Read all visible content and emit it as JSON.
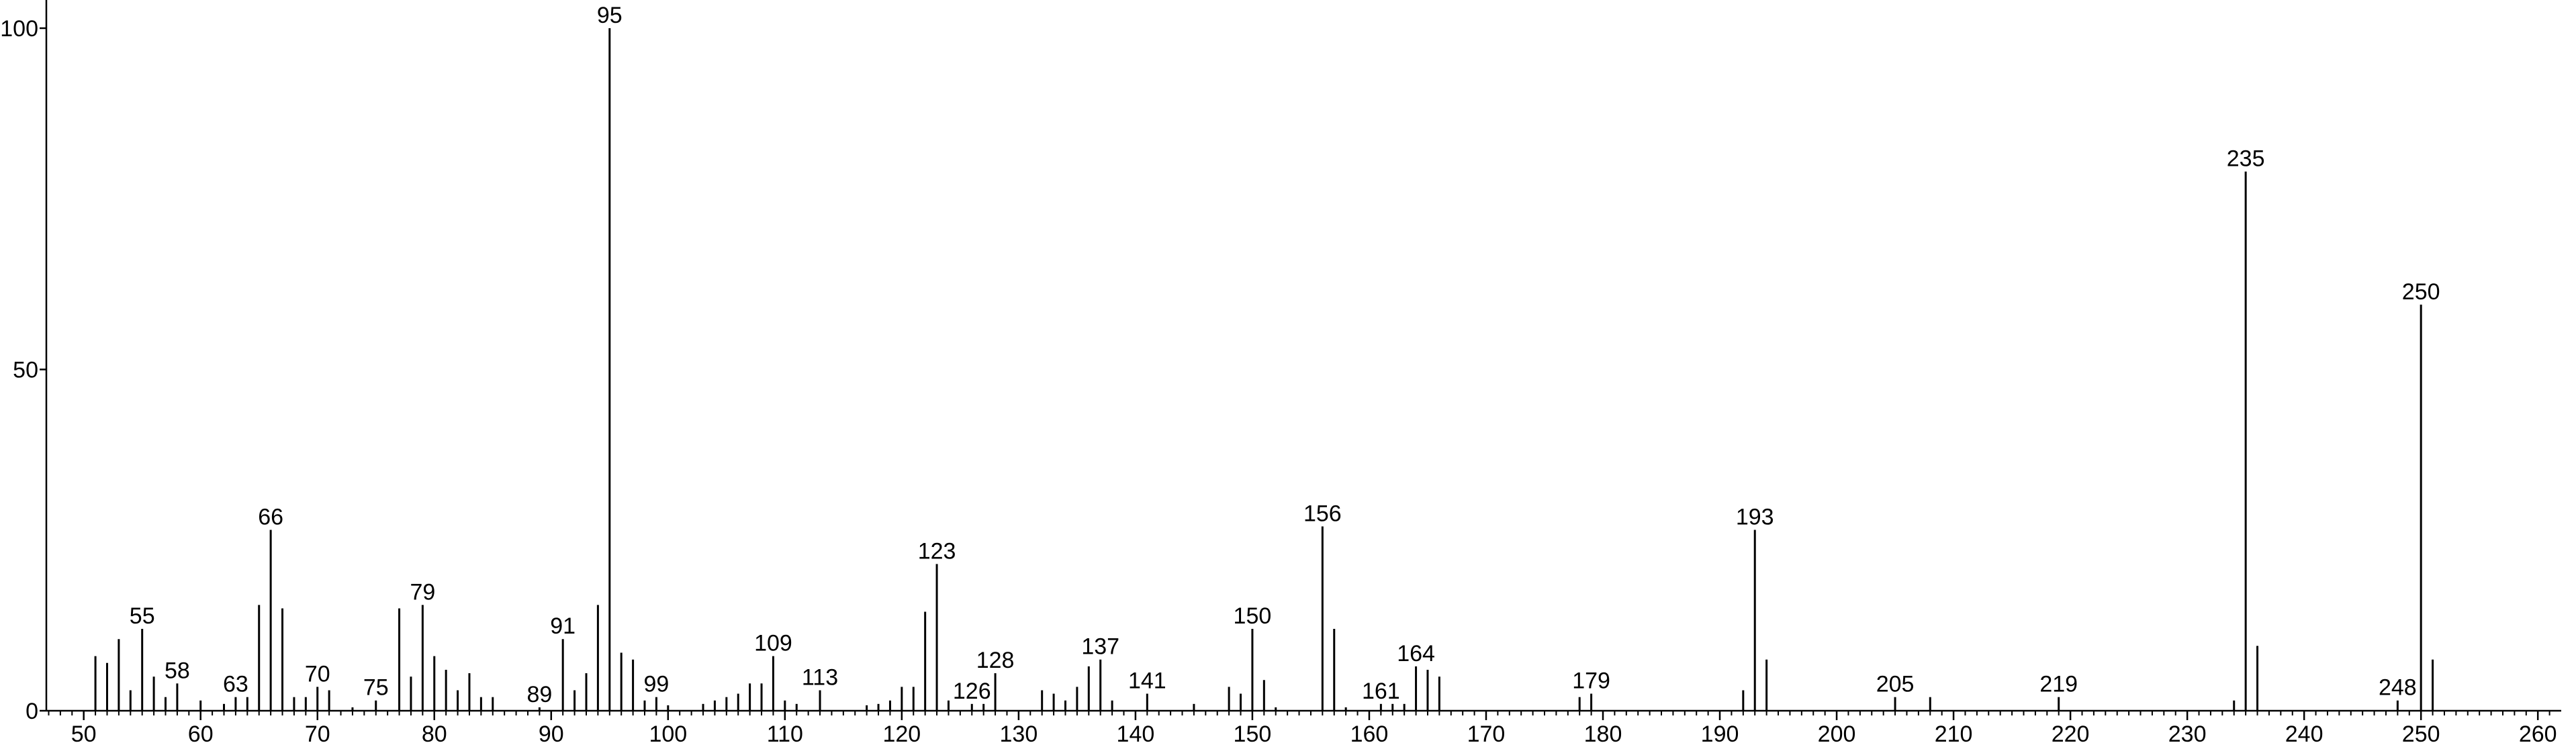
{
  "chart_data": {
    "type": "stem",
    "x": [
      51,
      52,
      53,
      54,
      55,
      56,
      57,
      58,
      60,
      62,
      63,
      64,
      65,
      66,
      67,
      68,
      69,
      70,
      71,
      73,
      75,
      77,
      78,
      79,
      80,
      81,
      82,
      83,
      84,
      85,
      89,
      91,
      92,
      93,
      94,
      95,
      96,
      97,
      98,
      99,
      100,
      103,
      104,
      105,
      106,
      107,
      108,
      109,
      110,
      111,
      113,
      117,
      118,
      119,
      120,
      121,
      122,
      123,
      124,
      126,
      127,
      128,
      132,
      133,
      134,
      135,
      136,
      137,
      138,
      141,
      145,
      148,
      149,
      150,
      151,
      152,
      156,
      157,
      158,
      161,
      162,
      163,
      164,
      165,
      166,
      178,
      179,
      192,
      193,
      194,
      205,
      208,
      219,
      234,
      235,
      236,
      248,
      250,
      251
    ],
    "values": [
      8,
      7,
      10.5,
      3,
      12,
      5,
      2,
      4,
      1.5,
      1,
      2,
      2,
      15.5,
      26.5,
      15,
      2,
      2,
      3.5,
      3,
      0.5,
      1.5,
      15,
      5,
      15.5,
      8,
      6,
      3,
      5.5,
      2,
      2,
      0.5,
      10.5,
      3,
      5.5,
      15.5,
      100,
      8.5,
      7.5,
      1.5,
      2,
      0.8,
      1,
      1.5,
      2,
      2.5,
      4,
      4,
      8,
      1.5,
      1,
      3,
      0.8,
      1,
      1.5,
      3.5,
      3.5,
      14.5,
      21.5,
      1.5,
      1,
      1,
      5.5,
      3,
      2.5,
      1.5,
      3.5,
      6.5,
      7.5,
      1.5,
      2.5,
      1,
      3.5,
      2.5,
      12,
      4.5,
      0.5,
      27,
      12,
      0.5,
      1,
      1,
      1,
      6.5,
      6,
      5,
      2,
      2.5,
      3,
      26.5,
      7.5,
      2,
      2,
      2,
      1.5,
      79,
      9.5,
      1.5,
      59.5,
      7.5
    ],
    "annotations": [
      "55",
      "58",
      "63",
      "66",
      "70",
      "75",
      "79",
      "89",
      "91",
      "95",
      "99",
      "109",
      "113",
      "123",
      "126",
      "128",
      "137",
      "141",
      "150",
      "156",
      "161",
      "164",
      "179",
      "193",
      "205",
      "219",
      "235",
      "248",
      "250"
    ],
    "color": "#000000",
    "xlim": [
      46.8,
      262
    ],
    "xticks": [
      50,
      60,
      70,
      80,
      90,
      100,
      110,
      120,
      130,
      140,
      150,
      160,
      170,
      180,
      190,
      200,
      210,
      220,
      230,
      240,
      250,
      260
    ],
    "xminorticks": [
      47,
      48,
      49,
      51,
      52,
      53,
      54,
      55,
      56,
      57,
      58,
      59,
      61,
      62,
      63,
      64,
      65,
      66,
      67,
      68,
      69,
      71,
      72,
      73,
      74,
      75,
      76,
      77,
      78,
      79,
      81,
      82,
      83,
      84,
      85,
      86,
      87,
      88,
      89,
      91,
      92,
      93,
      94,
      95,
      96,
      97,
      98,
      99,
      101,
      102,
      103,
      104,
      105,
      106,
      107,
      108,
      109,
      111,
      112,
      113,
      114,
      115,
      116,
      117,
      118,
      119,
      121,
      122,
      123,
      124,
      125,
      126,
      127,
      128,
      129,
      131,
      132,
      133,
      134,
      135,
      136,
      137,
      138,
      139,
      141,
      142,
      143,
      144,
      145,
      146,
      147,
      148,
      149,
      151,
      152,
      153,
      154,
      155,
      156,
      157,
      158,
      159,
      161,
      162,
      163,
      164,
      165,
      166,
      167,
      168,
      169,
      171,
      172,
      173,
      174,
      175,
      176,
      177,
      178,
      179,
      181,
      182,
      183,
      184,
      185,
      186,
      187,
      188,
      189,
      191,
      192,
      193,
      194,
      195,
      196,
      197,
      198,
      199,
      201,
      202,
      203,
      204,
      205,
      206,
      207,
      208,
      209,
      211,
      212,
      213,
      214,
      215,
      216,
      217,
      218,
      219,
      221,
      222,
      223,
      224,
      225,
      226,
      227,
      228,
      229,
      231,
      232,
      233,
      234,
      235,
      236,
      237,
      238,
      239,
      241,
      242,
      243,
      244,
      245,
      246,
      247,
      248,
      249,
      251,
      252,
      253,
      254,
      255,
      256,
      257,
      258,
      259,
      261
    ],
    "ylim": [
      0,
      100
    ],
    "yticks": [
      0,
      50,
      100
    ]
  }
}
